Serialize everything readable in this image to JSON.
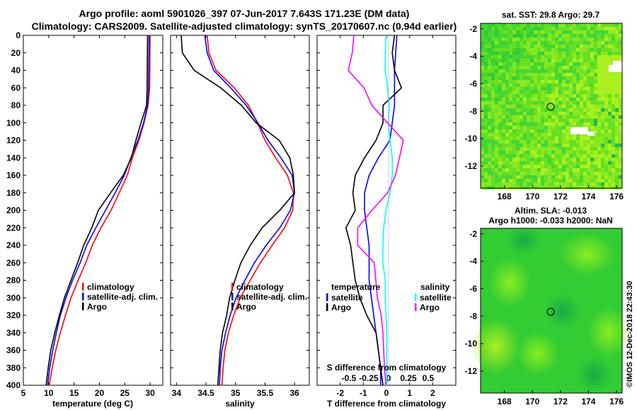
{
  "header": {
    "line1": "Argo profile: aoml 5901026_397 07-Jun-2017 7.643S 171.23E (DM data)",
    "line2": "Climatology: CARS2009. Satellite-adjusted climatology: synTS_20170607.nc (0.94d earlier)"
  },
  "colors": {
    "climatology": "#ff0000",
    "satellite": "#0000ff",
    "argo": "#000000",
    "satellite_salinity": "#00ffff",
    "climatology_salinity": "#ff00ff",
    "map_bg": "#33cc33"
  },
  "chart_data": [
    {
      "type": "line",
      "name": "temperature",
      "xlabel": "temperature (deg C)",
      "ylabel": "",
      "xlim": [
        5,
        32.5
      ],
      "ylim": [
        400,
        0
      ],
      "xticks": [
        "5",
        "10",
        "15",
        "20",
        "25",
        "30"
      ],
      "yticks": [
        "0",
        "20",
        "40",
        "60",
        "80",
        "100",
        "120",
        "140",
        "160",
        "180",
        "200",
        "220",
        "240",
        "260",
        "280",
        "300",
        "320",
        "340",
        "360",
        "380",
        "400"
      ],
      "legend": [
        "climatology",
        "satellite-adj. clim.",
        "Argo"
      ],
      "series": [
        {
          "name": "climatology",
          "depth": [
            0,
            60,
            80,
            100,
            120,
            140,
            160,
            180,
            200,
            220,
            240,
            260,
            280,
            300,
            320,
            340,
            360,
            380,
            400
          ],
          "values": [
            30,
            29.9,
            29.6,
            28.8,
            27.8,
            26.5,
            25.5,
            23.9,
            22.3,
            20.3,
            18.6,
            17.3,
            15.8,
            14.4,
            13.3,
            12.3,
            11.4,
            10.7,
            10.1
          ]
        },
        {
          "name": "satellite-adj. clim.",
          "depth": [
            0,
            60,
            80,
            100,
            120,
            140,
            160,
            180,
            200,
            220,
            240,
            260,
            280,
            300,
            320,
            340,
            360,
            380,
            400
          ],
          "values": [
            29.8,
            29.7,
            29.5,
            28.7,
            27.6,
            26.2,
            24.9,
            23.1,
            21.2,
            19.3,
            17.5,
            16.2,
            14.7,
            13.4,
            12.3,
            11.5,
            10.8,
            10.2,
            9.8
          ]
        },
        {
          "name": "Argo",
          "depth": [
            0,
            60,
            80,
            100,
            120,
            140,
            160,
            180,
            200,
            220,
            240,
            260,
            280,
            300,
            320,
            340,
            360,
            380,
            400
          ],
          "values": [
            29.5,
            29.4,
            29.3,
            28.2,
            27.2,
            26.3,
            24.7,
            22.2,
            19.8,
            18.5,
            16.9,
            15.7,
            14.4,
            13.1,
            12.1,
            11.2,
            10.4,
            9.9,
            9.5
          ]
        }
      ]
    },
    {
      "type": "line",
      "name": "salinity",
      "xlabel": "salinity",
      "xlim": [
        33.9,
        36.25
      ],
      "ylim": [
        400,
        0
      ],
      "xticks": [
        "34",
        "34.5",
        "35",
        "35.5",
        "36"
      ],
      "legend": [
        "climatology",
        "satellite-adj. clim.",
        "Argo"
      ],
      "series": [
        {
          "name": "climatology",
          "depth": [
            0,
            20,
            40,
            60,
            80,
            100,
            120,
            140,
            160,
            180,
            200,
            220,
            240,
            260,
            280,
            300,
            320,
            340,
            360,
            380,
            400
          ],
          "values": [
            34.52,
            34.55,
            34.67,
            34.98,
            35.22,
            35.37,
            35.5,
            35.68,
            35.88,
            35.98,
            35.97,
            35.83,
            35.62,
            35.42,
            35.25,
            35.08,
            34.97,
            34.88,
            34.82,
            34.79,
            34.77
          ]
        },
        {
          "name": "satellite-adj. clim.",
          "depth": [
            0,
            20,
            40,
            60,
            80,
            100,
            120,
            140,
            160,
            180,
            200,
            220,
            240,
            260,
            280,
            300,
            320,
            340,
            360,
            380,
            400
          ],
          "values": [
            34.48,
            34.52,
            34.63,
            34.92,
            35.18,
            35.38,
            35.55,
            35.77,
            35.96,
            36.0,
            35.93,
            35.75,
            35.52,
            35.32,
            35.16,
            35.01,
            34.91,
            34.83,
            34.77,
            34.74,
            34.73
          ]
        },
        {
          "name": "Argo",
          "depth": [
            0,
            20,
            40,
            60,
            80,
            100,
            120,
            140,
            160,
            180,
            200,
            220,
            240,
            260,
            280,
            300,
            320,
            340,
            360,
            380,
            400
          ],
          "values": [
            34.08,
            34.1,
            34.3,
            34.75,
            35.1,
            35.35,
            35.74,
            35.92,
            35.98,
            36.0,
            35.75,
            35.45,
            35.25,
            35.09,
            34.99,
            34.9,
            34.85,
            34.78,
            34.74,
            34.72,
            34.7
          ]
        }
      ]
    },
    {
      "type": "line",
      "name": "differences",
      "xlabel": "T difference from climatology",
      "xlabel_top": "S difference from climatology",
      "xlim": [
        -3,
        3
      ],
      "ylim": [
        400,
        0
      ],
      "xticks": [
        "-2",
        "-1",
        "0",
        "1",
        "2"
      ],
      "xticks_top": [
        "-0.5",
        "-0.25",
        "0",
        "0.25",
        "0.5"
      ],
      "legend_left_title": "temperature",
      "legend_right_title": "salinity",
      "legend_left": [
        "satellite",
        "Argo"
      ],
      "legend_right": [
        "satellite",
        "Argo"
      ],
      "series": [
        {
          "name": "T satellite",
          "depth": [
            0,
            40,
            80,
            100,
            120,
            140,
            160,
            180,
            200,
            220,
            240,
            260,
            280,
            300,
            320,
            340,
            360,
            380,
            400
          ],
          "values": [
            0.4,
            0.3,
            0.3,
            0.2,
            0.1,
            -0.4,
            -0.8,
            -1.0,
            -1.0,
            -0.9,
            -0.8,
            -0.8,
            -0.8,
            -0.7,
            -0.6,
            -0.5,
            -0.4,
            -0.3,
            -0.3
          ]
        },
        {
          "name": "T Argo",
          "depth": [
            0,
            20,
            40,
            60,
            80,
            100,
            120,
            140,
            160,
            180,
            200,
            220,
            240,
            260,
            280,
            300,
            320,
            340,
            360,
            380,
            400
          ],
          "values": [
            0.3,
            0.2,
            0.3,
            0.6,
            -0.2,
            -0.2,
            -0.5,
            -1.0,
            -1.4,
            -1.5,
            -1.4,
            -1.8,
            -1.6,
            -1.5,
            -1.4,
            -1.2,
            -0.9,
            -0.5,
            -0.4,
            -0.3,
            -0.2
          ]
        },
        {
          "name": "S satellite",
          "depth": [
            0,
            20,
            40,
            60,
            80,
            100,
            120,
            140,
            160,
            180,
            200,
            220,
            240,
            260,
            280,
            300,
            320,
            340,
            360,
            380,
            400
          ],
          "values": [
            -0.02,
            -0.03,
            -0.03,
            0.0,
            0.02,
            0.01,
            0.03,
            0.06,
            0.06,
            0.03,
            -0.02,
            -0.05,
            -0.06,
            -0.06,
            -0.03,
            -0.03,
            -0.02,
            -0.01,
            -0.01,
            -0.01,
            -0.01
          ]
        },
        {
          "name": "S Argo",
          "depth": [
            0,
            20,
            40,
            60,
            80,
            100,
            120,
            140,
            160,
            180,
            200,
            220,
            240,
            260,
            280,
            300,
            320,
            340,
            360,
            380,
            400
          ],
          "values": [
            -0.43,
            -0.45,
            -0.5,
            -0.3,
            -0.2,
            0.0,
            0.2,
            0.15,
            0.1,
            0.0,
            -0.2,
            -0.38,
            -0.38,
            -0.17,
            -0.15,
            -0.13,
            -0.08,
            -0.06,
            -0.05,
            -0.04,
            -0.02
          ]
        }
      ]
    },
    {
      "type": "heatmap",
      "name": "sat-sst",
      "title": "sat. SST: 29.8 Argo: 29.7",
      "xticks": [
        "168",
        "170",
        "172",
        "174",
        "176"
      ],
      "yticks": [
        "-2",
        "-4",
        "-6",
        "-8",
        "-10",
        "-12"
      ],
      "marker": {
        "lon": 171.23,
        "lat": -7.643
      }
    },
    {
      "type": "heatmap",
      "name": "altim-sla",
      "title_line1": "Altim. SLA: -0.013",
      "title_line2": "Argo h1000: -0.033 h2000: NaN",
      "xticks": [
        "168",
        "170",
        "172",
        "174",
        "176"
      ],
      "yticks": [
        "-2",
        "-4",
        "-6",
        "-8",
        "-10",
        "-12"
      ],
      "marker": {
        "lon": 171.23,
        "lat": -7.643
      }
    }
  ],
  "footer": {
    "credit": "©IMOS 12-Dec-2018 22:43:30"
  }
}
